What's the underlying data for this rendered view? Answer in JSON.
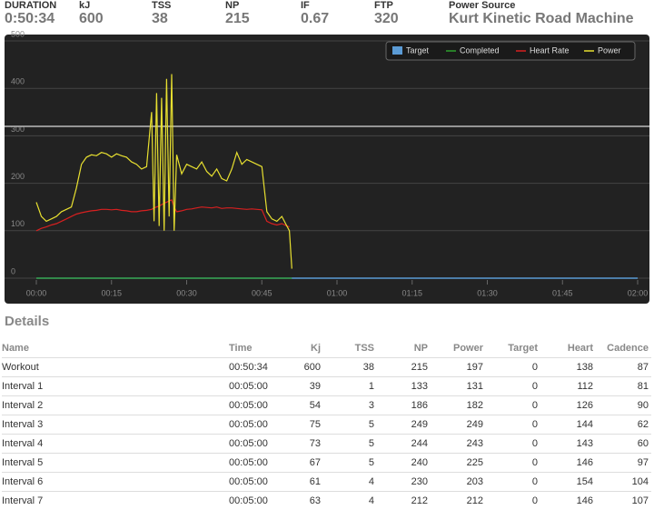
{
  "header": {
    "stats": [
      {
        "label": "DURATION",
        "value": "0:50:34"
      },
      {
        "label": "kJ",
        "value": "600"
      },
      {
        "label": "TSS",
        "value": "38"
      },
      {
        "label": "NP",
        "value": "215"
      },
      {
        "label": "IF",
        "value": "0.67"
      },
      {
        "label": "FTP",
        "value": "320"
      },
      {
        "label": "Power Source",
        "value": "Kurt Kinetic Road Machine"
      }
    ]
  },
  "chart_data": {
    "type": "line",
    "ftp_line": 320,
    "xlim": [
      0,
      120
    ],
    "xticks": [
      {
        "value": 0,
        "label": "00:00"
      },
      {
        "value": 15,
        "label": "00:15"
      },
      {
        "value": 30,
        "label": "00:30"
      },
      {
        "value": 45,
        "label": "00:45"
      },
      {
        "value": 60,
        "label": "01:00"
      },
      {
        "value": 75,
        "label": "01:15"
      },
      {
        "value": 90,
        "label": "01:30"
      },
      {
        "value": 105,
        "label": "01:45"
      },
      {
        "value": 120,
        "label": "02:00"
      }
    ],
    "ylim": [
      0,
      500
    ],
    "yticks": [
      0,
      100,
      200,
      300,
      400,
      500
    ],
    "grid": true,
    "legend": "top-right",
    "x": [
      0,
      1,
      2,
      3,
      4,
      5,
      6,
      7,
      8,
      9,
      10,
      11,
      12,
      13,
      14,
      15,
      16,
      17,
      18,
      19,
      20,
      21,
      22,
      23,
      23.5,
      24,
      24.5,
      25,
      25.5,
      26,
      26.5,
      27,
      27.5,
      28,
      29,
      30,
      31,
      32,
      33,
      34,
      35,
      36,
      37,
      38,
      39,
      40,
      41,
      42,
      43,
      44,
      45,
      46,
      47,
      48,
      49,
      50,
      50.5,
      51,
      120
    ],
    "series": [
      {
        "name": "Target",
        "color": "#5b9bd5",
        "marker": "square",
        "values": [
          0,
          0,
          0,
          0,
          0,
          0,
          0,
          0,
          0,
          0,
          0,
          0,
          0,
          0,
          0,
          0,
          0,
          0,
          0,
          0,
          0,
          0,
          0,
          0,
          0,
          0,
          0,
          0,
          0,
          0,
          0,
          0,
          0,
          0,
          0,
          0,
          0,
          0,
          0,
          0,
          0,
          0,
          0,
          0,
          0,
          0,
          0,
          0,
          0,
          0,
          0,
          0,
          0,
          0,
          0,
          0,
          0,
          0,
          0
        ]
      },
      {
        "name": "Completed",
        "color": "#2ca02c",
        "marker": "line",
        "values": [
          0,
          0,
          0,
          0,
          0,
          0,
          0,
          0,
          0,
          0,
          0,
          0,
          0,
          0,
          0,
          0,
          0,
          0,
          0,
          0,
          0,
          0,
          0,
          0,
          0,
          0,
          0,
          0,
          0,
          0,
          0,
          0,
          0,
          0,
          0,
          0,
          0,
          0,
          0,
          0,
          0,
          0,
          0,
          0,
          0,
          0,
          0,
          0,
          0,
          0,
          0,
          0,
          0,
          0,
          0,
          0,
          0,
          0,
          null
        ]
      },
      {
        "name": "Heart Rate",
        "color": "#d62020",
        "marker": "line",
        "values": [
          100,
          105,
          108,
          112,
          115,
          120,
          125,
          130,
          135,
          138,
          140,
          142,
          143,
          145,
          145,
          144,
          145,
          143,
          142,
          140,
          140,
          142,
          143,
          145,
          148,
          150,
          152,
          155,
          158,
          160,
          163,
          165,
          150,
          140,
          142,
          145,
          146,
          148,
          150,
          149,
          148,
          150,
          147,
          148,
          148,
          147,
          146,
          145,
          146,
          145,
          144,
          120,
          115,
          112,
          115,
          110,
          108,
          null,
          null
        ]
      },
      {
        "name": "Power",
        "color": "#e8e030",
        "marker": "line",
        "values": [
          160,
          130,
          120,
          125,
          130,
          140,
          145,
          150,
          190,
          240,
          255,
          260,
          258,
          265,
          262,
          255,
          262,
          258,
          255,
          245,
          240,
          230,
          235,
          350,
          120,
          390,
          110,
          380,
          100,
          420,
          130,
          430,
          100,
          260,
          220,
          240,
          235,
          230,
          245,
          225,
          215,
          230,
          210,
          205,
          230,
          265,
          240,
          250,
          245,
          240,
          235,
          140,
          125,
          120,
          130,
          110,
          100,
          20,
          null
        ]
      }
    ]
  },
  "details": {
    "title": "Details",
    "columns": [
      "Name",
      "Time",
      "Kj",
      "TSS",
      "NP",
      "Power",
      "Target",
      "Heart",
      "Cadence"
    ],
    "rows": [
      [
        "Workout",
        "00:50:34",
        "600",
        "38",
        "215",
        "197",
        "0",
        "138",
        "87"
      ],
      [
        "Interval 1",
        "00:05:00",
        "39",
        "1",
        "133",
        "131",
        "0",
        "112",
        "81"
      ],
      [
        "Interval 2",
        "00:05:00",
        "54",
        "3",
        "186",
        "182",
        "0",
        "126",
        "90"
      ],
      [
        "Interval 3",
        "00:05:00",
        "75",
        "5",
        "249",
        "249",
        "0",
        "144",
        "62"
      ],
      [
        "Interval 4",
        "00:05:00",
        "73",
        "5",
        "244",
        "243",
        "0",
        "143",
        "60"
      ],
      [
        "Interval 5",
        "00:05:00",
        "67",
        "5",
        "240",
        "225",
        "0",
        "146",
        "97"
      ],
      [
        "Interval 6",
        "00:05:00",
        "61",
        "4",
        "230",
        "203",
        "0",
        "154",
        "104"
      ],
      [
        "Interval 7",
        "00:05:00",
        "63",
        "4",
        "212",
        "212",
        "0",
        "146",
        "107"
      ]
    ]
  }
}
